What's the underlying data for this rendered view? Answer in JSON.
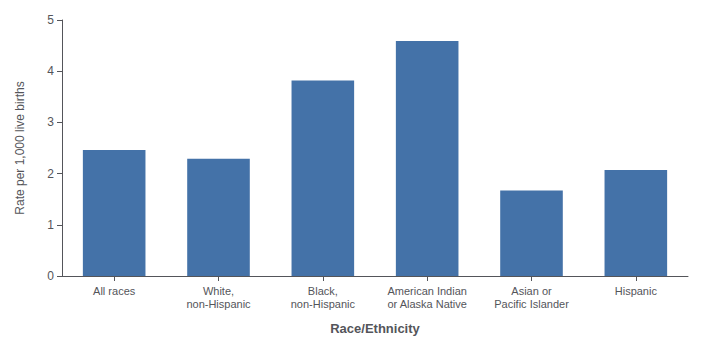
{
  "chart_data": {
    "type": "bar",
    "categories": [
      "All races",
      "White,\nnon-Hispanic",
      "Black,\nnon-Hispanic",
      "American Indian\nor Alaska Native",
      "Asian or\nPacific Islander",
      "Hispanic"
    ],
    "values": [
      2.46,
      2.29,
      3.82,
      4.59,
      1.67,
      2.07
    ],
    "color": "#4472a8",
    "xlabel": "Race/Ethnicity",
    "ylabel": "Rate per 1,000 live births",
    "ylim": [
      0,
      5
    ],
    "yticks": [
      0,
      1,
      2,
      3,
      4,
      5
    ],
    "grid": false
  }
}
